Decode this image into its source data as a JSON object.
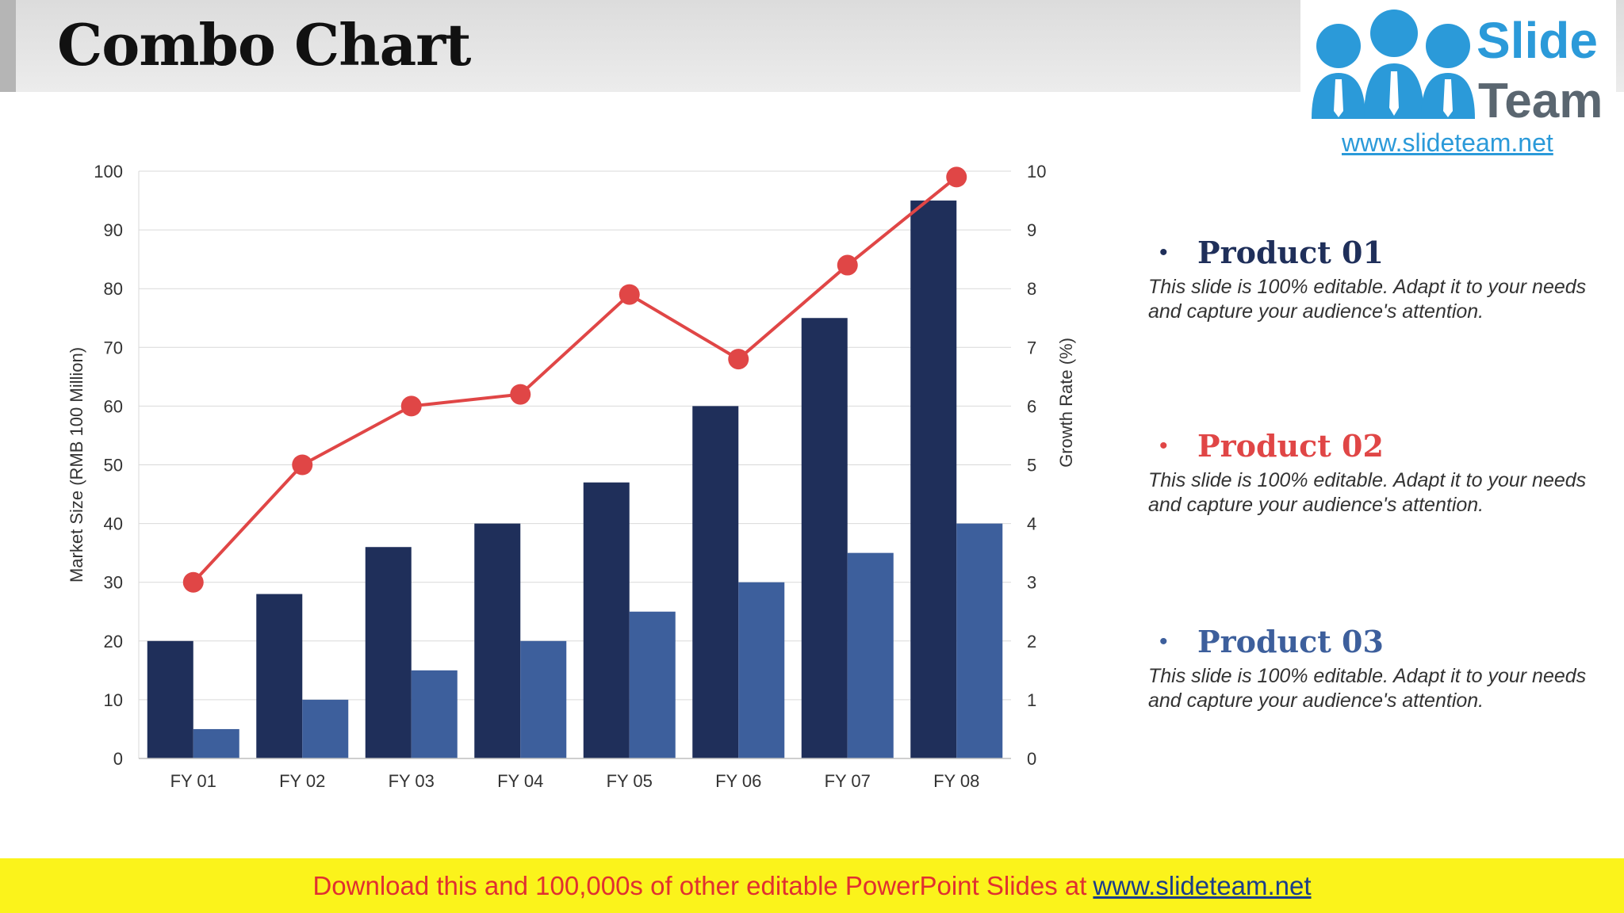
{
  "header": {
    "title": "Combo Chart"
  },
  "logo": {
    "line1": "Slide",
    "line2": "Team",
    "url": "www.slideteam.net"
  },
  "legend": [
    {
      "name": "Product 01",
      "description": "This slide is 100% editable. Adapt it to your needs and capture your audience's attention.",
      "color": "#1f2f5a"
    },
    {
      "name": "Product 02",
      "description": "This slide is 100% editable. Adapt it to your needs and capture your audience's attention.",
      "color": "#e04646"
    },
    {
      "name": "Product 03",
      "description": "This slide is 100% editable. Adapt it to your needs and capture your audience's attention.",
      "color": "#3d5f9c"
    }
  ],
  "footer": {
    "text": "Download this and 100,000s of other editable PowerPoint Slides at",
    "link": "www.slideteam.net"
  },
  "chart_data": {
    "type": "bar",
    "categories": [
      "FY 01",
      "FY 02",
      "FY 03",
      "FY 04",
      "FY 05",
      "FY 06",
      "FY 07",
      "FY 08"
    ],
    "ylabel": "Market Size (RMB 100 Million)",
    "y2label": "Growth Rate (%)",
    "ylim": [
      0,
      100
    ],
    "y2lim": [
      0,
      10
    ],
    "yticks": [
      0,
      10,
      20,
      30,
      40,
      50,
      60,
      70,
      80,
      90,
      100
    ],
    "y2ticks": [
      0,
      1,
      2,
      3,
      4,
      5,
      6,
      7,
      8,
      9,
      10
    ],
    "grid": true,
    "series": [
      {
        "type": "bar",
        "axis": "left",
        "values": [
          20,
          28,
          36,
          40,
          47,
          60,
          75,
          95
        ],
        "color": "#1f2f5a"
      },
      {
        "type": "bar",
        "axis": "left",
        "values": [
          5,
          10,
          15,
          20,
          25,
          30,
          35,
          40
        ],
        "color": "#3d5f9c"
      },
      {
        "type": "line",
        "axis": "right",
        "values": [
          3,
          5,
          6,
          6.2,
          7.9,
          6.8,
          8.4,
          9.9
        ],
        "color": "#e04646"
      }
    ]
  }
}
